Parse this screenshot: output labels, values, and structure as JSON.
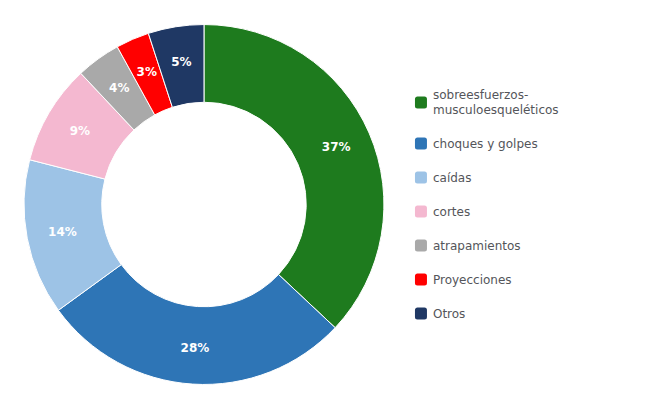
{
  "chart_data": {
    "type": "pie",
    "categories": [
      "sobreesfuerzos-\nmusculoesqueléticos",
      "choques y golpes",
      "caídas",
      "cortes",
      "atrapamientos",
      "Proyecciones",
      "Otros"
    ],
    "values": [
      37,
      28,
      14,
      9,
      4,
      3,
      5
    ],
    "value_labels": [
      "37%",
      "28%",
      "14%",
      "9%",
      "4%",
      "3%",
      "5%"
    ],
    "colors": [
      "#1e7b1e",
      "#2e75b6",
      "#9dc3e6",
      "#f4b8d0",
      "#a9a9a9",
      "#ff0000",
      "#1f3864"
    ],
    "data_labels": true,
    "legend": "right"
  }
}
